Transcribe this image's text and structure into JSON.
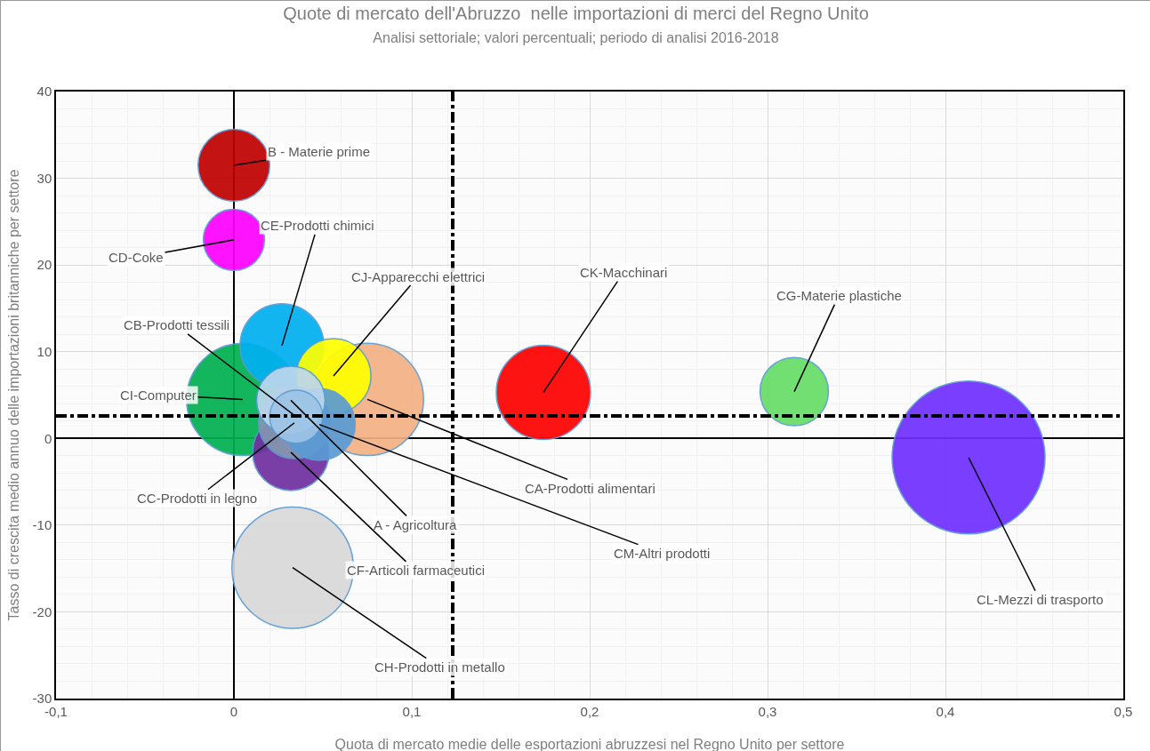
{
  "chart_data": {
    "type": "bubble",
    "title": "Quote di mercato dell'Abruzzo  nelle importazioni di merci del Regno Unito",
    "subtitle": "Analisi settoriale; valori percentuali; periodo di analisi 2016-2018",
    "xlabel": "Quota di mercato medie delle esportazioni abruzzesi nel Regno Unito per settore",
    "ylabel": "Tasso di crescita medio annuo delle importazioni britanniche per settore",
    "x": [
      0.005,
      0,
      0,
      0.027,
      0.056,
      0.075,
      0.032,
      0.034,
      0.035,
      0.048,
      0.032,
      0.033,
      0.174,
      0.315,
      0.413
    ],
    "values": [
      4.5,
      31.5,
      22.9,
      10.7,
      7.2,
      4.5,
      4.4,
      1.8,
      2.5,
      1.6,
      -1.6,
      -14.9,
      5.3,
      5.4,
      -2.2
    ],
    "sizes": [
      0.54,
      0.22,
      0.16,
      0.3,
      0.24,
      0.54,
      0.2,
      0.22,
      0.12,
      0.22,
      0.25,
      0.63,
      0.38,
      0.2,
      1
    ],
    "colors": [
      "#00b050",
      "#c00000",
      "#ff00ff",
      "#00b0f0",
      "#ffff00",
      "#f4b183",
      "#bdd7ee",
      "#8497b0",
      "#9dc3e6",
      "#5b9bd5",
      "#7030a0",
      "#d9d9d9",
      "#ff0000",
      "#66dd66",
      "#7030ff"
    ],
    "annotations": [
      {
        "text": "CI-Computer",
        "x": 0.005,
        "y": 4.5
      },
      {
        "text": "B - Materie prime",
        "x": 0,
        "y": 31.5
      },
      {
        "text": "CD-Coke",
        "x": 0,
        "y": 22.9
      },
      {
        "text": "CE-Prodotti chimici",
        "x": 0.027,
        "y": 10.7
      },
      {
        "text": "CJ-Apparecchi elettrici",
        "x": 0.056,
        "y": 7.2
      },
      {
        "text": "CA-Prodotti alimentari",
        "x": 0.075,
        "y": 4.5
      },
      {
        "text": "A - Agricoltura",
        "x": 0.032,
        "y": 4.4
      },
      {
        "text": "CC-Prodotti in legno",
        "x": 0.034,
        "y": 1.8
      },
      {
        "text": "CB-Prodotti tessili",
        "x": 0.035,
        "y": 2.5
      },
      {
        "text": "CM-Altri prodotti",
        "x": 0.048,
        "y": 1.6
      },
      {
        "text": "CF-Articoli farmaceutici",
        "x": 0.032,
        "y": -1.6
      },
      {
        "text": "CH-Prodotti in metallo",
        "x": 0.033,
        "y": -14.9
      },
      {
        "text": "CK-Macchinari",
        "x": 0.174,
        "y": 5.3
      },
      {
        "text": "CG-Materie plastiche",
        "x": 0.315,
        "y": 5.4
      },
      {
        "text": "CL-Mezzi di trasporto",
        "x": 0.413,
        "y": -2.2
      }
    ],
    "ref_lines": [
      {
        "axis": "x",
        "value": 0.123,
        "color": "#000000",
        "line_style": "dashed"
      },
      {
        "axis": "y",
        "value": 2.6,
        "color": "#000000",
        "line_style": "dashed"
      }
    ],
    "xlim": [
      -0.1,
      0.5
    ],
    "xticks": [
      {
        "value": -0.1,
        "label": "-0,1"
      },
      0,
      {
        "value": 0.1,
        "label": "0,1"
      },
      {
        "value": 0.2,
        "label": "0,2"
      },
      {
        "value": 0.3,
        "label": "0,3"
      },
      {
        "value": 0.4,
        "label": "0,4"
      },
      {
        "value": 0.5,
        "label": "0,5"
      }
    ],
    "ylim": [
      -30,
      40
    ],
    "yticks": [
      -30,
      -20,
      -10,
      0,
      10,
      20,
      30,
      40
    ],
    "grid": true
  }
}
